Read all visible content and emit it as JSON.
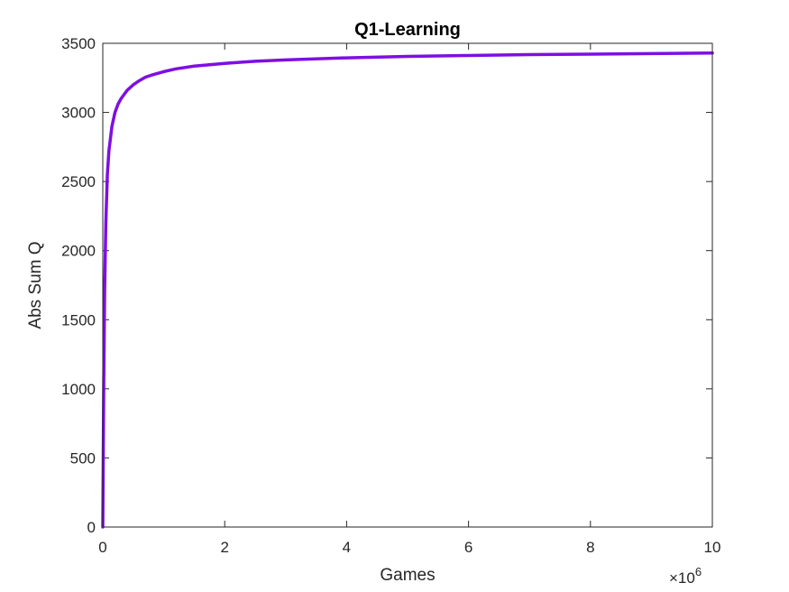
{
  "chart_data": {
    "type": "line",
    "title": "Q1-Learning",
    "xlabel": "Games",
    "ylabel": "Abs Sum Q",
    "xlim": [
      0,
      10000000
    ],
    "ylim": [
      0,
      3500
    ],
    "x_ticks": [
      0,
      2000000,
      4000000,
      6000000,
      8000000,
      10000000
    ],
    "x_tick_labels": [
      "0",
      "2",
      "4",
      "6",
      "8",
      "10"
    ],
    "x_exponent": {
      "base": "×10",
      "power": "6"
    },
    "y_ticks": [
      0,
      500,
      1000,
      1500,
      2000,
      2500,
      3000,
      3500
    ],
    "y_tick_labels": [
      "0",
      "500",
      "1000",
      "1500",
      "2000",
      "2500",
      "3000",
      "3500"
    ],
    "grid": false,
    "series": [
      {
        "color": "#7e0fe3",
        "x": [
          0,
          15000,
          30000,
          50000,
          75000,
          100000,
          150000,
          200000,
          250000,
          300000,
          400000,
          500000,
          600000,
          700000,
          800000,
          1000000,
          1200000,
          1500000,
          2000000,
          2500000,
          3000000,
          4000000,
          5000000,
          6000000,
          7000000,
          8000000,
          9000000,
          10000000
        ],
        "values": [
          0,
          1000,
          1700,
          2200,
          2550,
          2720,
          2900,
          3000,
          3060,
          3100,
          3160,
          3200,
          3230,
          3255,
          3270,
          3295,
          3315,
          3335,
          3355,
          3370,
          3380,
          3395,
          3405,
          3412,
          3418,
          3422,
          3426,
          3430
        ]
      }
    ]
  }
}
